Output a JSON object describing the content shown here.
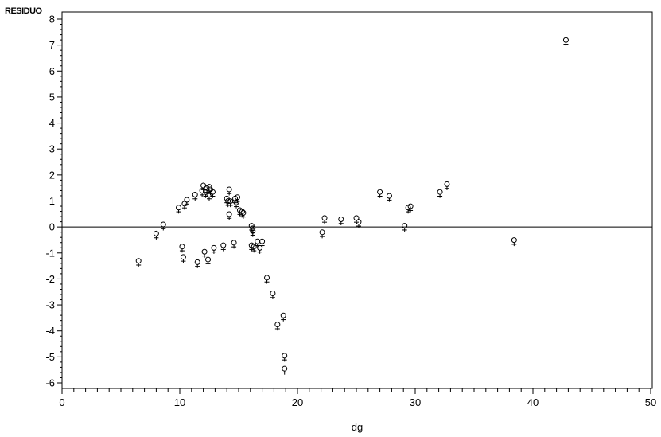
{
  "chart_data": {
    "type": "scatter",
    "title": "",
    "xlabel": "dg",
    "ylabel": "RESIDUO",
    "xlim": [
      0,
      50
    ],
    "ylim": [
      -6,
      8
    ],
    "x_ticks": [
      "0",
      "10",
      "20",
      "30",
      "40",
      "50"
    ],
    "y_ticks": [
      "-6",
      "-5",
      "-4",
      "-3",
      "-2",
      "-1",
      "0",
      "1",
      "2",
      "3",
      "4",
      "5",
      "6",
      "7",
      "8"
    ],
    "reference_line_y": 0,
    "grid": false,
    "legend": "none",
    "marker": "female-symbol",
    "points": [
      {
        "x": 6.5,
        "y": -1.35
      },
      {
        "x": 8.0,
        "y": -0.3
      },
      {
        "x": 8.6,
        "y": 0.05
      },
      {
        "x": 9.9,
        "y": 0.7
      },
      {
        "x": 10.2,
        "y": -0.8
      },
      {
        "x": 10.3,
        "y": -1.2
      },
      {
        "x": 10.4,
        "y": 0.85
      },
      {
        "x": 10.6,
        "y": 1.0
      },
      {
        "x": 11.3,
        "y": 1.2
      },
      {
        "x": 11.5,
        "y": -1.4
      },
      {
        "x": 11.9,
        "y": 1.35
      },
      {
        "x": 12.0,
        "y": 1.55
      },
      {
        "x": 12.1,
        "y": -1.0
      },
      {
        "x": 12.2,
        "y": 1.3
      },
      {
        "x": 12.3,
        "y": 1.45
      },
      {
        "x": 12.4,
        "y": -1.3
      },
      {
        "x": 12.5,
        "y": 1.2
      },
      {
        "x": 12.5,
        "y": 1.5
      },
      {
        "x": 12.6,
        "y": 1.4
      },
      {
        "x": 12.8,
        "y": 1.3
      },
      {
        "x": 12.9,
        "y": -0.85
      },
      {
        "x": 13.7,
        "y": -0.75
      },
      {
        "x": 14.0,
        "y": 1.05
      },
      {
        "x": 14.1,
        "y": 0.95
      },
      {
        "x": 14.2,
        "y": 1.4
      },
      {
        "x": 14.2,
        "y": 0.45
      },
      {
        "x": 14.3,
        "y": 0.95
      },
      {
        "x": 14.6,
        "y": -0.65
      },
      {
        "x": 14.7,
        "y": 1.05
      },
      {
        "x": 14.8,
        "y": 0.9
      },
      {
        "x": 14.9,
        "y": 1.1
      },
      {
        "x": 15.1,
        "y": 0.6
      },
      {
        "x": 15.3,
        "y": 0.55
      },
      {
        "x": 15.4,
        "y": 0.5
      },
      {
        "x": 16.1,
        "y": -0.75
      },
      {
        "x": 16.1,
        "y": 0.0
      },
      {
        "x": 16.2,
        "y": -0.1
      },
      {
        "x": 16.2,
        "y": -0.2
      },
      {
        "x": 16.3,
        "y": -0.8
      },
      {
        "x": 16.6,
        "y": -0.6
      },
      {
        "x": 16.8,
        "y": -0.85
      },
      {
        "x": 17.0,
        "y": -0.6
      },
      {
        "x": 17.4,
        "y": -2.0
      },
      {
        "x": 17.9,
        "y": -2.6
      },
      {
        "x": 18.3,
        "y": -3.8
      },
      {
        "x": 18.8,
        "y": -3.45
      },
      {
        "x": 18.9,
        "y": -5.0
      },
      {
        "x": 18.9,
        "y": -5.5
      },
      {
        "x": 22.1,
        "y": -0.25
      },
      {
        "x": 22.3,
        "y": 0.3
      },
      {
        "x": 23.7,
        "y": 0.25
      },
      {
        "x": 25.0,
        "y": 0.3
      },
      {
        "x": 25.2,
        "y": 0.15
      },
      {
        "x": 27.0,
        "y": 1.3
      },
      {
        "x": 27.8,
        "y": 1.15
      },
      {
        "x": 29.1,
        "y": 0.0
      },
      {
        "x": 29.4,
        "y": 0.7
      },
      {
        "x": 29.6,
        "y": 0.75
      },
      {
        "x": 32.1,
        "y": 1.3
      },
      {
        "x": 32.7,
        "y": 1.6
      },
      {
        "x": 38.4,
        "y": -0.55
      },
      {
        "x": 42.8,
        "y": 7.15
      }
    ]
  }
}
